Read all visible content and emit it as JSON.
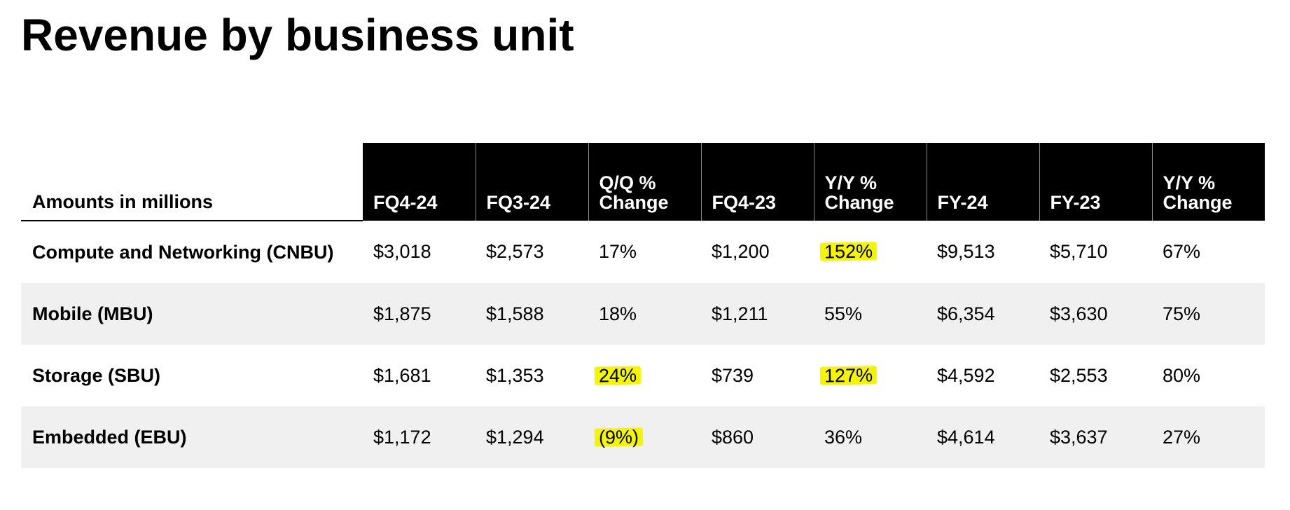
{
  "page_title": "Revenue by business unit",
  "table": {
    "headers": [
      "Amounts in millions",
      "FQ4-24",
      "FQ3-24",
      "Q/Q % Change",
      "FQ4-23",
      "Y/Y % Change",
      "FY-24",
      "FY-23",
      "Y/Y % Change"
    ],
    "rows": [
      {
        "label": "Compute and Networking (CNBU)",
        "cells": [
          "$3,018",
          "$2,573",
          "17%",
          "$1,200",
          "152%",
          "$9,513",
          "$5,710",
          "67%"
        ],
        "highlighted": [
          false,
          false,
          false,
          false,
          true,
          false,
          false,
          false
        ]
      },
      {
        "label": "Mobile (MBU)",
        "cells": [
          "$1,875",
          "$1,588",
          "18%",
          "$1,211",
          "55%",
          "$6,354",
          "$3,630",
          "75%"
        ],
        "highlighted": [
          false,
          false,
          false,
          false,
          false,
          false,
          false,
          false
        ]
      },
      {
        "label": "Storage (SBU)",
        "cells": [
          "$1,681",
          "$1,353",
          "24%",
          "$739",
          "127%",
          "$4,592",
          "$2,553",
          "80%"
        ],
        "highlighted": [
          false,
          false,
          true,
          false,
          true,
          false,
          false,
          false
        ]
      },
      {
        "label": "Embedded (EBU)",
        "cells": [
          "$1,172",
          "$1,294",
          "(9%)",
          "$860",
          "36%",
          "$4,614",
          "$3,637",
          "27%"
        ],
        "highlighted": [
          false,
          false,
          true,
          false,
          false,
          false,
          false,
          false
        ]
      }
    ]
  },
  "colors": {
    "header_bg": "#000000",
    "header_text": "#ffffff",
    "shaded_row": "#f0f0f0",
    "highlight": "#f5f500"
  }
}
